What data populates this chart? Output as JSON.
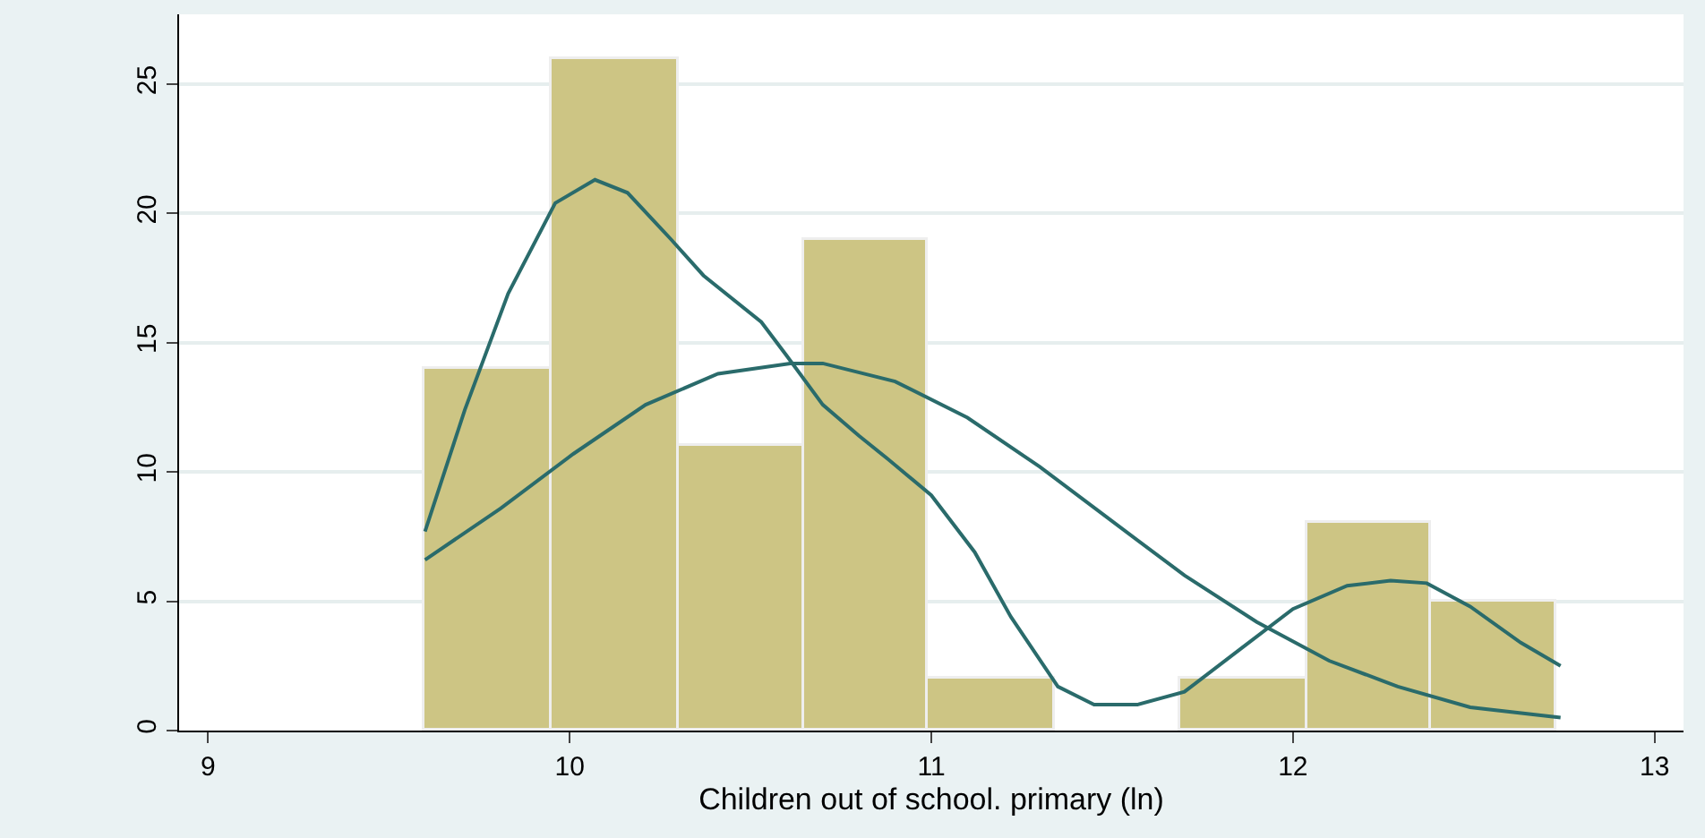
{
  "chart_data": {
    "type": "histogram",
    "xlabel": "Children out of school. primary (ln)",
    "xlim": [
      8.92,
      13.08
    ],
    "xticks": [
      9,
      10,
      11,
      12,
      13
    ],
    "ylim": [
      0,
      27.7
    ],
    "yticks": [
      0,
      5,
      10,
      15,
      20,
      25
    ],
    "grid": "y",
    "series": [
      {
        "color": "#cdc584",
        "bins": [
          9.6,
          9.95,
          10.3,
          10.65,
          10.99,
          11.34,
          11.69,
          12.04,
          12.38,
          12.73
        ],
        "values": [
          14,
          26,
          11,
          19,
          2,
          0,
          2,
          8,
          5
        ]
      },
      {
        "type": "line",
        "color": "#2a6b6b",
        "x": [
          9.6,
          9.71,
          9.83,
          9.96,
          10.07,
          10.16,
          10.28,
          10.37,
          10.53,
          10.6,
          10.7,
          10.8,
          10.88,
          11.0,
          11.12,
          11.22,
          11.35,
          11.45,
          11.57,
          11.7,
          11.85,
          12.0,
          12.15,
          12.27,
          12.37,
          12.49,
          12.63,
          12.74
        ],
        "values": [
          7.7,
          12.4,
          16.9,
          20.4,
          21.3,
          20.8,
          19.0,
          17.6,
          15.8,
          14.5,
          12.6,
          11.4,
          10.5,
          9.1,
          6.9,
          4.4,
          1.7,
          1.0,
          1.0,
          1.5,
          3.1,
          4.7,
          5.6,
          5.8,
          5.7,
          4.8,
          3.4,
          2.5
        ]
      },
      {
        "type": "line",
        "color": "#2a6b6b",
        "x": [
          9.6,
          9.81,
          10.01,
          10.21,
          10.41,
          10.61,
          10.7,
          10.9,
          11.1,
          11.3,
          11.5,
          11.7,
          11.9,
          12.1,
          12.29,
          12.49,
          12.74
        ],
        "values": [
          6.6,
          8.6,
          10.7,
          12.6,
          13.8,
          14.2,
          14.2,
          13.5,
          12.1,
          10.2,
          8.1,
          6.0,
          4.2,
          2.7,
          1.7,
          0.9,
          0.5
        ]
      }
    ]
  }
}
